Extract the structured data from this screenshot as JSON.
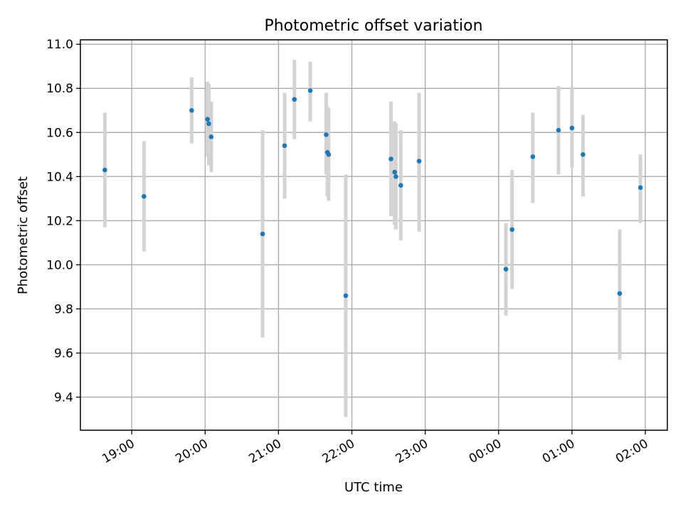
{
  "chart_data": {
    "type": "scatter",
    "title": "Photometric offset variation",
    "xlabel": "UTC time",
    "ylabel": "Photometric offset",
    "ylim": [
      9.25,
      11.02
    ],
    "yticks": [
      9.4,
      9.6,
      9.8,
      10.0,
      10.2,
      10.4,
      10.6,
      10.8,
      11.0
    ],
    "xlim": [
      "18:18",
      "02:18"
    ],
    "xticks": [
      "19:00",
      "20:00",
      "21:00",
      "22:00",
      "23:00",
      "00:00",
      "01:00",
      "02:00"
    ],
    "grid": true,
    "colors": {
      "point": "#1f77b4",
      "errorbar": "#d3d3d3"
    },
    "points": [
      {
        "t": "18:38",
        "y": 10.43,
        "lo": 10.17,
        "hi": 10.69
      },
      {
        "t": "19:10",
        "y": 10.31,
        "lo": 10.06,
        "hi": 10.56
      },
      {
        "t": "19:49",
        "y": 10.7,
        "lo": 10.55,
        "hi": 10.85
      },
      {
        "t": "20:02",
        "y": 10.66,
        "lo": 10.49,
        "hi": 10.83
      },
      {
        "t": "20:03",
        "y": 10.64,
        "lo": 10.45,
        "hi": 10.82
      },
      {
        "t": "20:05",
        "y": 10.58,
        "lo": 10.42,
        "hi": 10.74
      },
      {
        "t": "20:47",
        "y": 10.14,
        "lo": 9.67,
        "hi": 10.61
      },
      {
        "t": "21:05",
        "y": 10.54,
        "lo": 10.3,
        "hi": 10.78
      },
      {
        "t": "21:13",
        "y": 10.75,
        "lo": 10.57,
        "hi": 10.93
      },
      {
        "t": "21:26",
        "y": 10.79,
        "lo": 10.65,
        "hi": 10.92
      },
      {
        "t": "21:39",
        "y": 10.59,
        "lo": 10.41,
        "hi": 10.78
      },
      {
        "t": "21:40",
        "y": 10.51,
        "lo": 10.31,
        "hi": 10.72
      },
      {
        "t": "21:41",
        "y": 10.5,
        "lo": 10.29,
        "hi": 10.71
      },
      {
        "t": "21:55",
        "y": 9.86,
        "lo": 9.31,
        "hi": 10.41
      },
      {
        "t": "22:32",
        "y": 10.48,
        "lo": 10.22,
        "hi": 10.74
      },
      {
        "t": "22:35",
        "y": 10.42,
        "lo": 10.18,
        "hi": 10.65
      },
      {
        "t": "22:36",
        "y": 10.4,
        "lo": 10.16,
        "hi": 10.64
      },
      {
        "t": "22:40",
        "y": 10.36,
        "lo": 10.11,
        "hi": 10.61
      },
      {
        "t": "22:55",
        "y": 10.47,
        "lo": 10.15,
        "hi": 10.78
      },
      {
        "t": "00:06",
        "y": 9.98,
        "lo": 9.77,
        "hi": 10.19
      },
      {
        "t": "00:11",
        "y": 10.16,
        "lo": 9.89,
        "hi": 10.43
      },
      {
        "t": "00:28",
        "y": 10.49,
        "lo": 10.28,
        "hi": 10.69
      },
      {
        "t": "00:49",
        "y": 10.61,
        "lo": 10.41,
        "hi": 10.81
      },
      {
        "t": "01:00",
        "y": 10.62,
        "lo": 10.44,
        "hi": 10.8
      },
      {
        "t": "01:09",
        "y": 10.5,
        "lo": 10.31,
        "hi": 10.68
      },
      {
        "t": "01:39",
        "y": 9.87,
        "lo": 9.57,
        "hi": 10.16
      },
      {
        "t": "01:56",
        "y": 10.35,
        "lo": 10.19,
        "hi": 10.5
      }
    ]
  }
}
